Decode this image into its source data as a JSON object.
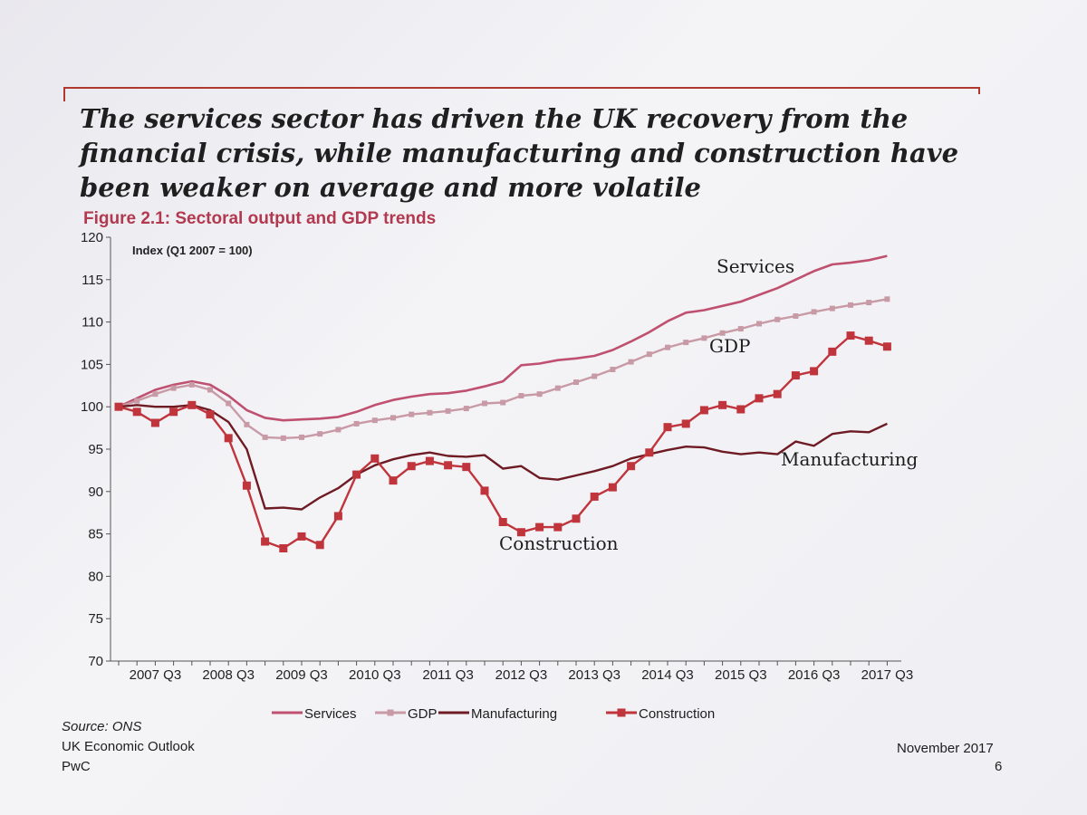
{
  "headline": [
    "The services sector has driven the UK recovery from the",
    "financial crisis, while manufacturing and construction have",
    "been weaker on average and more volatile"
  ],
  "figure_title": "Figure 2.1: Sectoral output and GDP trends",
  "footer": {
    "source": "Source: ONS",
    "publication": "UK Economic Outlook",
    "firm": "PwC",
    "date": "November 2017",
    "page": "6"
  },
  "chart_data": {
    "type": "line",
    "title": "Figure 2.1: Sectoral output and GDP trends",
    "ylabel": "Index (Q1 2007 = 100)",
    "xlabel": "",
    "ylim": [
      70,
      120
    ],
    "yticks": [
      70,
      75,
      80,
      85,
      90,
      95,
      100,
      105,
      110,
      115,
      120
    ],
    "x_tick_labels": [
      "2007 Q3",
      "2008 Q3",
      "2009 Q3",
      "2010 Q3",
      "2011 Q3",
      "2012 Q3",
      "2013 Q3",
      "2014 Q3",
      "2015 Q3",
      "2016 Q3",
      "2017 Q3"
    ],
    "x": [
      "2007 Q1",
      "2007 Q2",
      "2007 Q3",
      "2007 Q4",
      "2008 Q1",
      "2008 Q2",
      "2008 Q3",
      "2008 Q4",
      "2009 Q1",
      "2009 Q2",
      "2009 Q3",
      "2009 Q4",
      "2010 Q1",
      "2010 Q2",
      "2010 Q3",
      "2010 Q4",
      "2011 Q1",
      "2011 Q2",
      "2011 Q3",
      "2011 Q4",
      "2012 Q1",
      "2012 Q2",
      "2012 Q3",
      "2012 Q4",
      "2013 Q1",
      "2013 Q2",
      "2013 Q3",
      "2013 Q4",
      "2014 Q1",
      "2014 Q2",
      "2014 Q3",
      "2014 Q4",
      "2015 Q1",
      "2015 Q2",
      "2015 Q3",
      "2015 Q4",
      "2016 Q1",
      "2016 Q2",
      "2016 Q3",
      "2016 Q4",
      "2017 Q1",
      "2017 Q2",
      "2017 Q3"
    ],
    "grid": false,
    "legend_position": "bottom",
    "series": [
      {
        "name": "Services",
        "color": "#c05070",
        "marker": "none",
        "values": [
          100,
          101.0,
          102.0,
          102.6,
          103.0,
          102.6,
          101.3,
          99.6,
          98.7,
          98.4,
          98.5,
          98.6,
          98.8,
          99.4,
          100.2,
          100.8,
          101.2,
          101.5,
          101.6,
          101.9,
          102.4,
          103.0,
          104.9,
          105.1,
          105.5,
          105.7,
          106.0,
          106.7,
          107.7,
          108.8,
          110.1,
          111.1,
          111.4,
          111.9,
          112.4,
          113.2,
          114.0,
          115.0,
          116.0,
          116.8,
          117.0,
          117.3,
          117.8
        ]
      },
      {
        "name": "GDP",
        "color": "#c89aa6",
        "marker": "square",
        "values": [
          100,
          100.7,
          101.5,
          102.2,
          102.6,
          102.0,
          100.4,
          97.9,
          96.4,
          96.3,
          96.4,
          96.8,
          97.3,
          98.0,
          98.4,
          98.7,
          99.1,
          99.3,
          99.5,
          99.8,
          100.4,
          100.5,
          101.3,
          101.5,
          102.2,
          102.9,
          103.6,
          104.4,
          105.3,
          106.2,
          107.0,
          107.6,
          108.1,
          108.7,
          109.2,
          109.8,
          110.3,
          110.7,
          111.2,
          111.6,
          112.0,
          112.3,
          112.7
        ]
      },
      {
        "name": "Manufacturing",
        "color": "#6e1b24",
        "marker": "none",
        "values": [
          100,
          100.2,
          100.0,
          100.0,
          100.2,
          99.6,
          98.2,
          95.0,
          88.0,
          88.1,
          87.9,
          89.3,
          90.4,
          92.0,
          93.1,
          93.8,
          94.3,
          94.6,
          94.2,
          94.1,
          94.3,
          92.7,
          93.0,
          91.6,
          91.4,
          91.9,
          92.4,
          93.0,
          93.9,
          94.4,
          94.9,
          95.3,
          95.2,
          94.7,
          94.4,
          94.6,
          94.4,
          95.9,
          95.4,
          96.8,
          97.1,
          97.0,
          98.0
        ]
      },
      {
        "name": "Construction",
        "color": "#c0343c",
        "marker": "square",
        "values": [
          100,
          99.4,
          98.1,
          99.4,
          100.2,
          99.1,
          96.3,
          90.7,
          84.1,
          83.3,
          84.7,
          83.7,
          87.1,
          92.0,
          93.9,
          91.3,
          93.0,
          93.6,
          93.1,
          92.9,
          90.1,
          86.4,
          85.2,
          85.8,
          85.8,
          86.8,
          89.4,
          90.5,
          93.0,
          94.6,
          97.6,
          98.0,
          99.6,
          100.2,
          99.7,
          101.0,
          101.5,
          103.7,
          104.2,
          106.5,
          108.4,
          107.8,
          107.1
        ]
      }
    ],
    "annotations": [
      "Services",
      "GDP",
      "Manufacturing",
      "Construction"
    ]
  }
}
